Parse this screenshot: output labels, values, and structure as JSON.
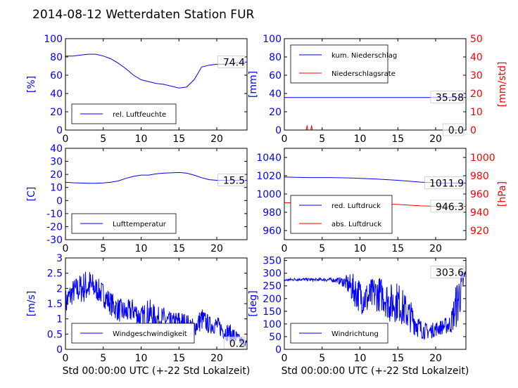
{
  "title": "2014-08-12 Wetterdaten Station FUR",
  "xlabel": "Std 00:00:00 UTC (+-22 Std Lokalzeit)",
  "colors": {
    "primary": "#0000ff",
    "secondary": "#ff0000",
    "axis": "#000000"
  },
  "chart_data": [
    {
      "type": "line",
      "ylabel": "[%]",
      "xlim": [
        0,
        24
      ],
      "ylim": [
        0,
        100
      ],
      "xticks": [
        0,
        5,
        10,
        15,
        20
      ],
      "yticks": [
        0,
        20,
        40,
        60,
        80,
        100
      ],
      "legend": "lower-left",
      "series": [
        {
          "name": "rel. Luftfeuchte",
          "color": "#0000ff",
          "x": [
            0,
            1,
            2,
            3,
            4,
            5,
            6,
            7,
            8,
            9,
            10,
            11,
            12,
            13,
            14,
            15,
            16,
            17,
            18,
            19,
            20,
            21,
            22,
            23,
            24
          ],
          "y": [
            81,
            81,
            82,
            83,
            83,
            81,
            78,
            73,
            67,
            60,
            55,
            53,
            51,
            50,
            48,
            46,
            47,
            55,
            69,
            71,
            72,
            72,
            73,
            74,
            74.4
          ]
        }
      ],
      "annotations": [
        {
          "text": "74.4",
          "value": 74.4
        }
      ]
    },
    {
      "type": "line",
      "ylabel": "[mm]",
      "ylabel_right": "[mm/std]",
      "xlim": [
        0,
        24
      ],
      "ylim": [
        0,
        100
      ],
      "ylim_right": [
        0,
        50
      ],
      "xticks": [
        0,
        5,
        10,
        15,
        20
      ],
      "yticks": [
        0,
        20,
        40,
        60,
        80,
        100
      ],
      "yticks_right": [
        0,
        10,
        20,
        30,
        40,
        50
      ],
      "legend": "top-left",
      "series": [
        {
          "name": "kum. Niederschlag",
          "color": "#0000ff",
          "axis": "left",
          "x": [
            0,
            24
          ],
          "y": [
            35.58,
            35.58
          ]
        },
        {
          "name": "Niederschlagsrate",
          "color": "#ff0000",
          "axis": "right",
          "x": [
            0,
            2.9,
            3.0,
            3.1,
            3.3,
            3.5,
            3.6,
            3.7,
            3.9,
            24
          ],
          "y": [
            0,
            0,
            2.5,
            0,
            0,
            0,
            2.5,
            0,
            0,
            0
          ]
        }
      ],
      "annotations": [
        {
          "text": "35.58",
          "value": 35.58
        },
        {
          "text": "0.0",
          "value": 0.0
        }
      ]
    },
    {
      "type": "line",
      "ylabel": "[C]",
      "xlim": [
        0,
        24
      ],
      "ylim": [
        -30,
        40
      ],
      "xticks": [
        0,
        5,
        10,
        15,
        20
      ],
      "yticks": [
        -30,
        -20,
        -10,
        0,
        10,
        20,
        30,
        40
      ],
      "legend": "lower-left",
      "series": [
        {
          "name": "Lufttemperatur",
          "color": "#0000ff",
          "x": [
            0,
            1,
            2,
            3,
            4,
            5,
            6,
            7,
            8,
            9,
            10,
            11,
            12,
            13,
            14,
            15,
            16,
            17,
            18,
            19,
            20,
            21,
            22,
            23,
            24
          ],
          "y": [
            14,
            13.6,
            13.4,
            13.2,
            13.2,
            13.5,
            14,
            15,
            17,
            18.5,
            19.5,
            19.5,
            20.5,
            21,
            21.2,
            21.5,
            21,
            19.5,
            17.5,
            16,
            15.5,
            15.5,
            15.5,
            15.5,
            15.5
          ]
        }
      ],
      "annotations": [
        {
          "text": "15.5",
          "value": 15.5
        }
      ]
    },
    {
      "type": "line",
      "ylabel": "",
      "ylabel_right": "[hPa]",
      "xlim": [
        0,
        24
      ],
      "ylim": [
        950,
        1050
      ],
      "ylim_right": [
        910,
        1010
      ],
      "xticks": [
        0,
        5,
        10,
        15,
        20
      ],
      "yticks": [
        960,
        980,
        1000,
        1020,
        1040
      ],
      "yticks_right": [
        920,
        940,
        960,
        980,
        1000
      ],
      "legend": "lower-left",
      "series": [
        {
          "name": "red. Luftdruck",
          "color": "#0000ff",
          "axis": "left",
          "x": [
            0,
            3,
            6,
            9,
            12,
            15,
            18,
            21,
            24
          ],
          "y": [
            1018.5,
            1018,
            1018,
            1017.5,
            1016.5,
            1015,
            1013,
            1012,
            1011.9
          ]
        },
        {
          "name": "abs. Luftdruck",
          "color": "#ff0000",
          "axis": "right",
          "x": [
            0,
            3,
            6,
            9,
            12,
            15,
            18,
            21,
            24
          ],
          "y": [
            950.5,
            950,
            950.5,
            950,
            949.5,
            948.5,
            947,
            946.5,
            946.3
          ]
        }
      ],
      "annotations": [
        {
          "text": "1011.9",
          "value": 1011.9
        },
        {
          "text": "946.3",
          "value": 946.3
        }
      ]
    },
    {
      "type": "line",
      "ylabel": "[m/s]",
      "xlim": [
        0,
        24
      ],
      "ylim": [
        0,
        3.0
      ],
      "xticks": [
        0,
        5,
        10,
        15,
        20
      ],
      "yticks": [
        0.0,
        0.5,
        1.0,
        1.5,
        2.0,
        2.5,
        3.0
      ],
      "legend": "lower-left",
      "series": [
        {
          "name": "Windgeschwindigkeit",
          "color": "#0000ff",
          "x": [
            0,
            1,
            2,
            3,
            4,
            5,
            6,
            7,
            8,
            9,
            10,
            11,
            12,
            13,
            14,
            15,
            16,
            17,
            18,
            19,
            20,
            21,
            22,
            23,
            24
          ],
          "y": [
            1.5,
            1.9,
            2.0,
            2.1,
            2.0,
            1.8,
            1.5,
            1.3,
            1.2,
            1.3,
            1.0,
            1.2,
            1.0,
            1.0,
            0.8,
            0.9,
            0.8,
            0.7,
            1.0,
            0.8,
            0.8,
            0.6,
            0.5,
            0.3,
            0.2
          ],
          "spread": [
            0.5,
            0.4,
            0.5,
            0.6,
            0.4,
            0.4,
            0.4,
            0.4,
            0.4,
            0.4,
            0.4,
            0.5,
            0.4,
            0.4,
            0.4,
            0.4,
            0.4,
            0.3,
            0.4,
            0.3,
            0.3,
            0.3,
            0.3,
            0.2,
            0.1
          ]
        }
      ],
      "annotations": [
        {
          "text": "0.2",
          "value": 0.2
        }
      ]
    },
    {
      "type": "line",
      "ylabel": "[deg]",
      "xlim": [
        0,
        24
      ],
      "ylim": [
        0,
        360
      ],
      "xticks": [
        0,
        5,
        10,
        15,
        20
      ],
      "yticks": [
        0,
        50,
        100,
        150,
        200,
        250,
        300,
        350
      ],
      "legend": "lower-left",
      "series": [
        {
          "name": "Windrichtung",
          "color": "#0000ff",
          "x": [
            0,
            1,
            2,
            3,
            4,
            5,
            6,
            7,
            8,
            9,
            10,
            11,
            12,
            13,
            14,
            15,
            16,
            17,
            18,
            19,
            20,
            21,
            22,
            23,
            24
          ],
          "y": [
            272,
            275,
            276,
            275,
            274,
            275,
            274,
            272,
            265,
            240,
            210,
            200,
            220,
            215,
            180,
            190,
            150,
            120,
            80,
            70,
            80,
            90,
            100,
            200,
            303.6
          ],
          "spread": [
            6,
            6,
            6,
            6,
            6,
            6,
            8,
            10,
            25,
            60,
            70,
            70,
            70,
            70,
            80,
            80,
            70,
            60,
            40,
            30,
            30,
            30,
            40,
            110,
            20
          ]
        }
      ],
      "annotations": [
        {
          "text": "303.6",
          "value": 303.6
        }
      ]
    }
  ]
}
